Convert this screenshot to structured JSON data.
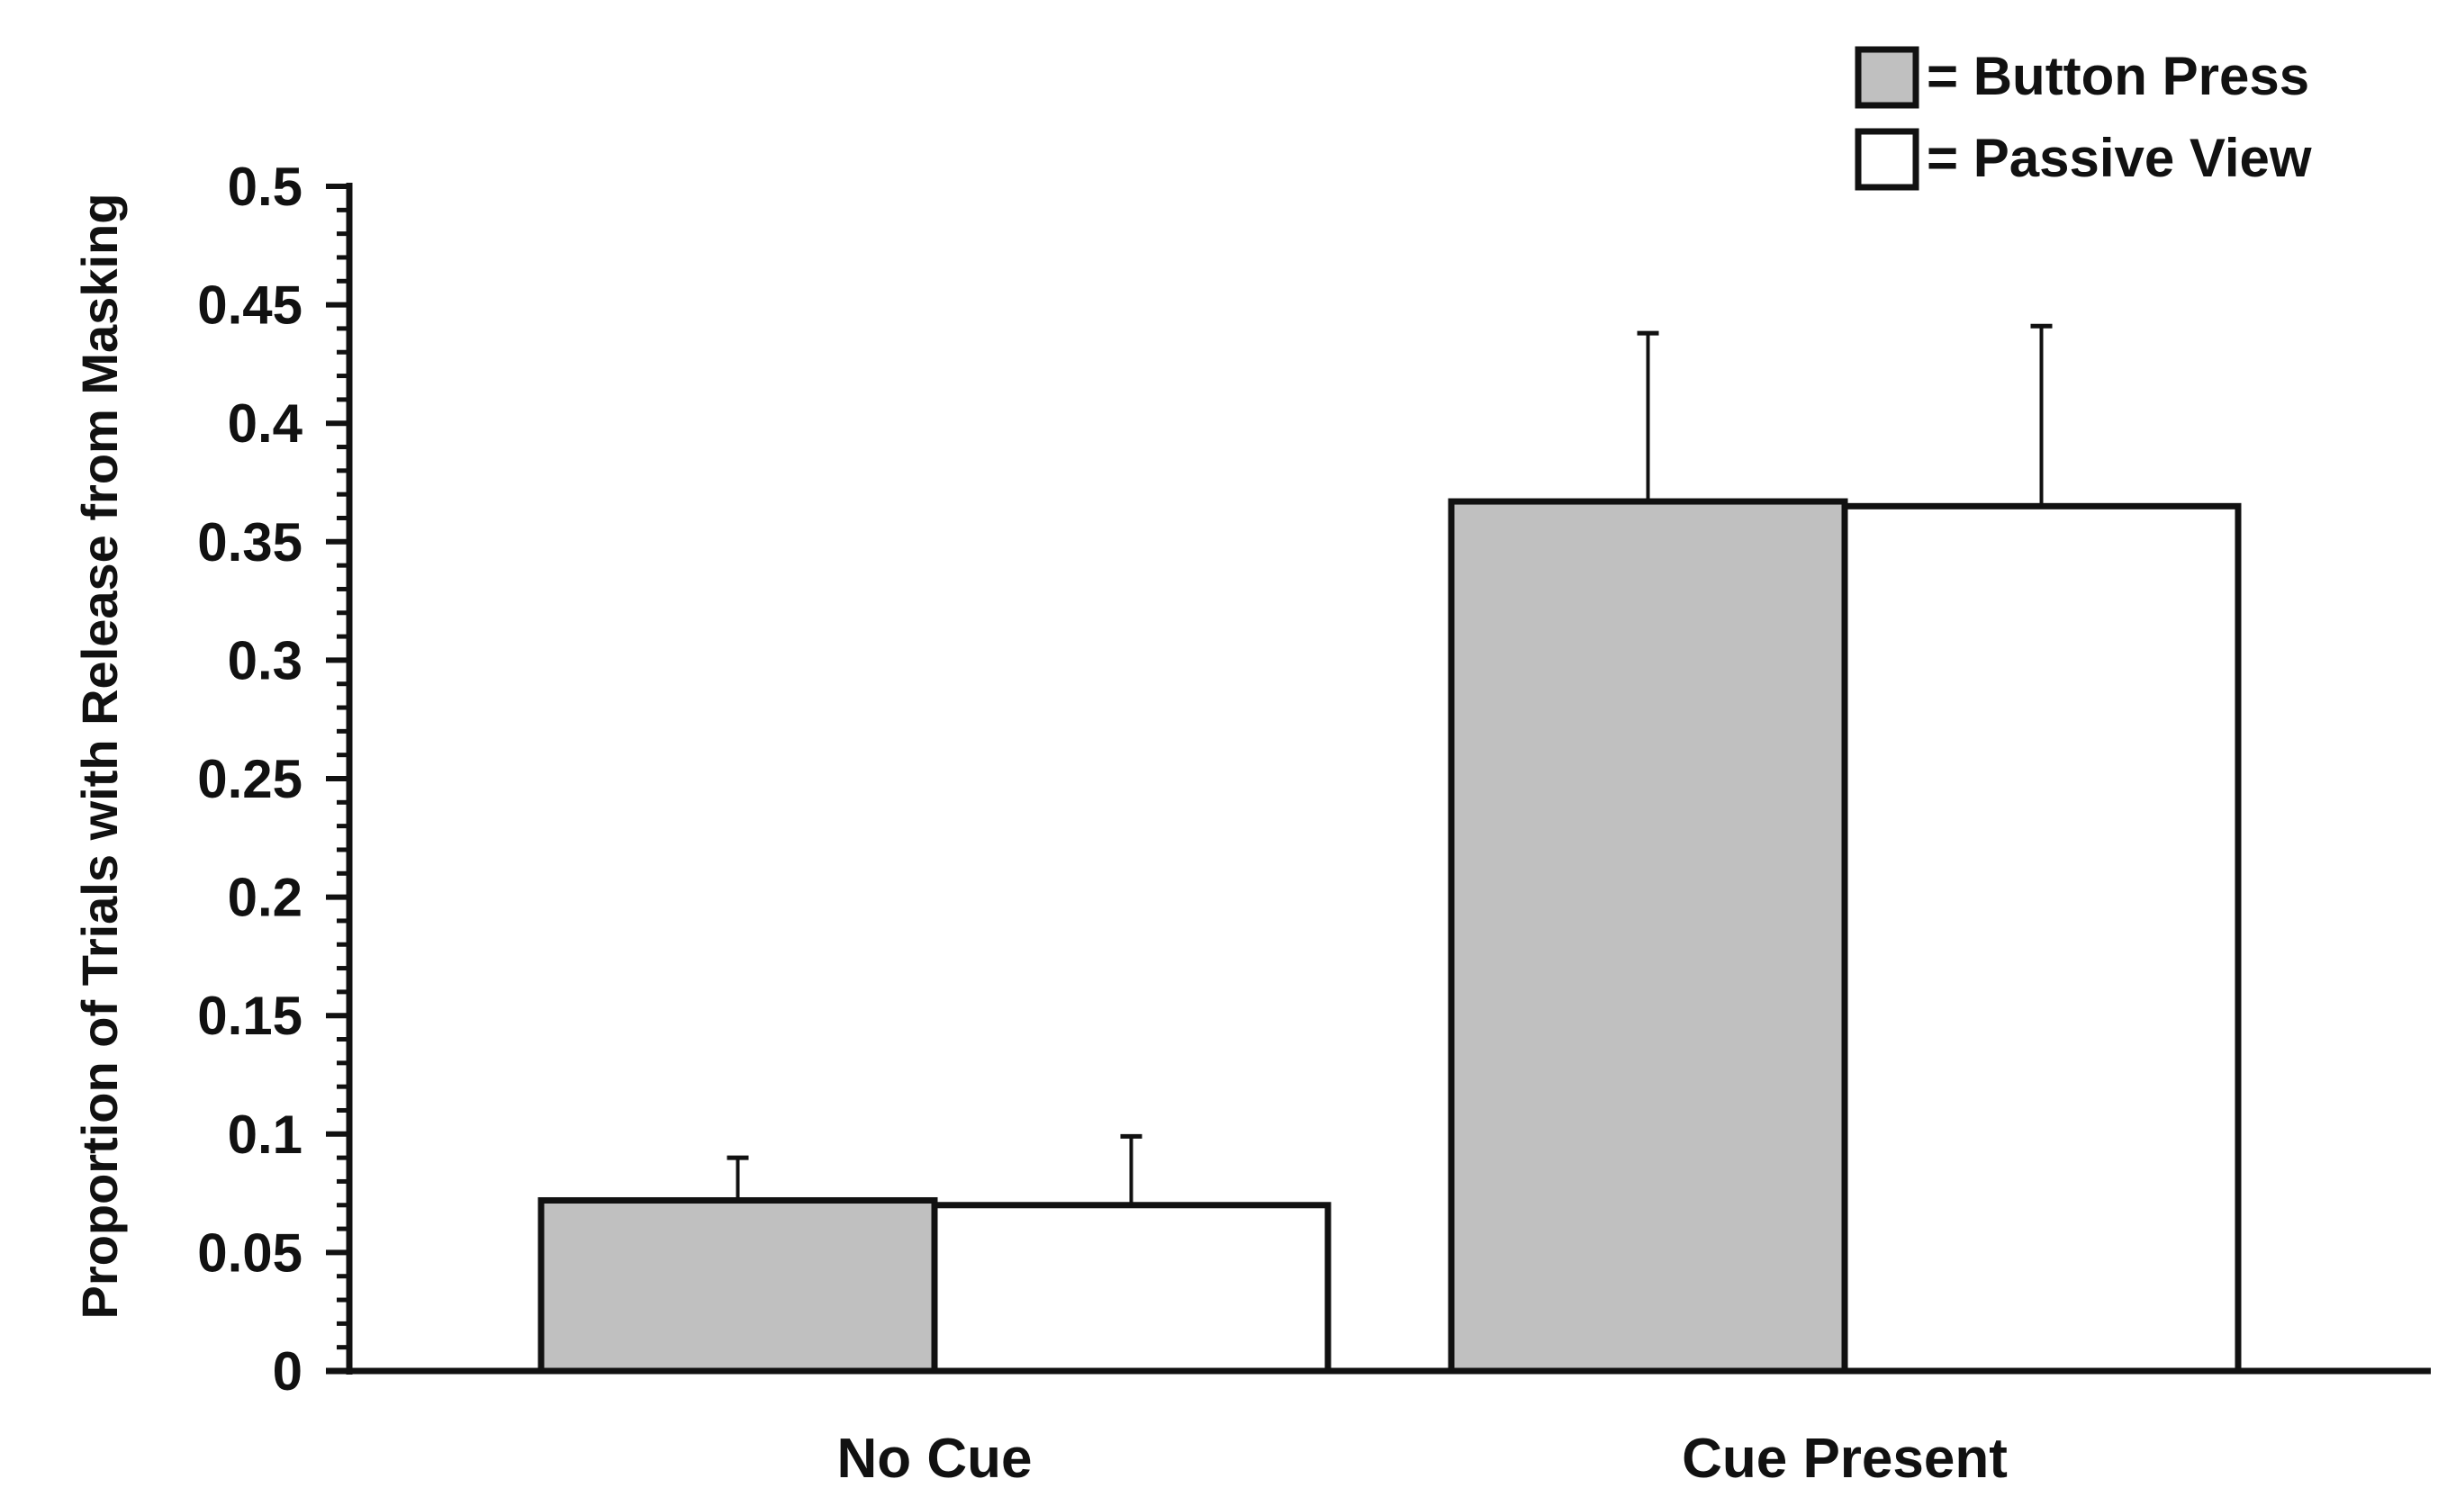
{
  "chart_data": {
    "type": "bar",
    "title": "",
    "xlabel": "",
    "ylabel": "Proportion of Trials with Release from Masking",
    "ylim": [
      0,
      0.5
    ],
    "yticks": [
      "0",
      "0.05",
      "0.1",
      "0.15",
      "0.2",
      "0.25",
      "0.3",
      "0.35",
      "0.4",
      "0.45",
      "0.5"
    ],
    "ytick_values": [
      0,
      0.05,
      0.1,
      0.15,
      0.2,
      0.25,
      0.3,
      0.35,
      0.4,
      0.45,
      0.5
    ],
    "categories": [
      "No Cue",
      "Cue Present"
    ],
    "series": [
      {
        "name": "Button Press",
        "legend_label": "= Button Press",
        "values": [
          0.072,
          0.367
        ],
        "error": [
          0.018,
          0.071
        ],
        "color": "#c0c0c0"
      },
      {
        "name": "Passive View",
        "legend_label": "= Passive View",
        "values": [
          0.07,
          0.365
        ],
        "error": [
          0.029,
          0.076
        ],
        "color": "#ffffff"
      }
    ],
    "legend_position": "top-right",
    "grid": false,
    "edge_color": "#111111"
  }
}
